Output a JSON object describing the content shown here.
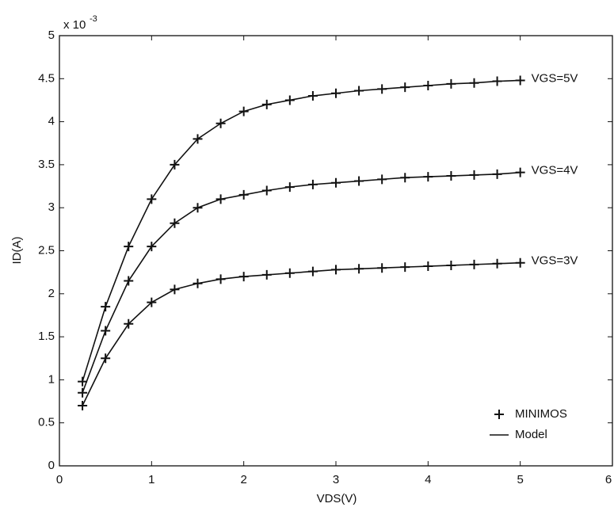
{
  "chart_data": {
    "type": "line",
    "x_label": "VDS(V)",
    "y_label": "ID(A)",
    "y_scale_label": "x 10",
    "y_scale_exponent": "-3",
    "x": [
      0.25,
      0.5,
      0.75,
      1,
      1.25,
      1.5,
      1.75,
      2,
      2.25,
      2.5,
      2.75,
      3,
      3.25,
      3.5,
      3.75,
      4,
      4.25,
      4.5,
      4.75,
      5
    ],
    "series": [
      {
        "name": "VGS=5V",
        "color": "#111111",
        "values": [
          0.98,
          1.85,
          2.55,
          3.1,
          3.5,
          3.8,
          3.98,
          4.12,
          4.2,
          4.25,
          4.3,
          4.33,
          4.36,
          4.38,
          4.4,
          4.42,
          4.44,
          4.45,
          4.47,
          4.48
        ]
      },
      {
        "name": "VGS=4V",
        "color": "#111111",
        "values": [
          0.85,
          1.57,
          2.15,
          2.55,
          2.82,
          3.0,
          3.1,
          3.15,
          3.2,
          3.24,
          3.27,
          3.29,
          3.31,
          3.33,
          3.35,
          3.36,
          3.37,
          3.38,
          3.39,
          3.41
        ]
      },
      {
        "name": "VGS=3V",
        "color": "#111111",
        "values": [
          0.7,
          1.25,
          1.65,
          1.9,
          2.05,
          2.12,
          2.17,
          2.2,
          2.22,
          2.24,
          2.26,
          2.28,
          2.29,
          2.3,
          2.31,
          2.32,
          2.33,
          2.34,
          2.35,
          2.36
        ]
      }
    ],
    "legend": {
      "markers": "MINIMOS",
      "line": "Model"
    },
    "legend_position": "lower right",
    "xlim": [
      0,
      6
    ],
    "xticks": [
      0,
      1,
      2,
      3,
      4,
      5,
      6
    ],
    "ylim": [
      0,
      5
    ],
    "yticks": [
      0,
      0.5,
      1,
      1.5,
      2,
      2.5,
      3,
      3.5,
      4,
      4.5,
      5
    ],
    "grid": false
  }
}
